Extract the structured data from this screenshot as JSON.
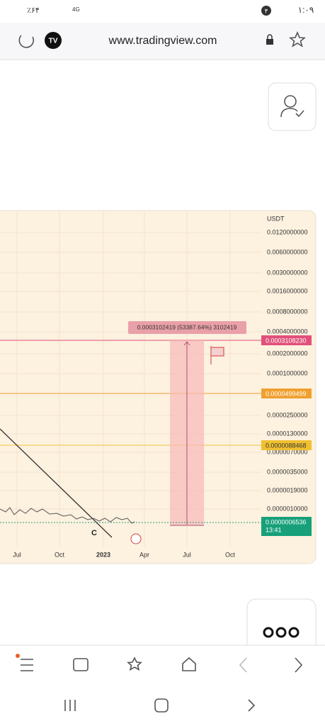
{
  "status_bar": {
    "battery": "٪۶۴",
    "network": "4G",
    "time": "۱:۰۹",
    "badge": "۴"
  },
  "browser_bar": {
    "url": "www.tradingview.com"
  },
  "chart": {
    "currency": "USDT",
    "price_scale": [
      "0.0120000000",
      "0.0060000000",
      "0.0030000000",
      "0.0016000000",
      "0.0008000000",
      "0.0004000000",
      "0.0002000000",
      "0.0001000000",
      "0.0000250000",
      "0.0000130000",
      "0.0000070000",
      "0.0000035000",
      "0.0000019000",
      "0.0000010000"
    ],
    "markers": [
      "0.0003108230",
      "0.0000499499",
      "0.0000088468"
    ],
    "last_price": "0.0000006536",
    "countdown": "13:41",
    "measure": "0.0003102419 (53387.64%) 3102419",
    "time_scale": [
      "Jul",
      "Oct",
      "2023",
      "Apr",
      "Jul",
      "Oct"
    ],
    "wave_label": "C"
  }
}
